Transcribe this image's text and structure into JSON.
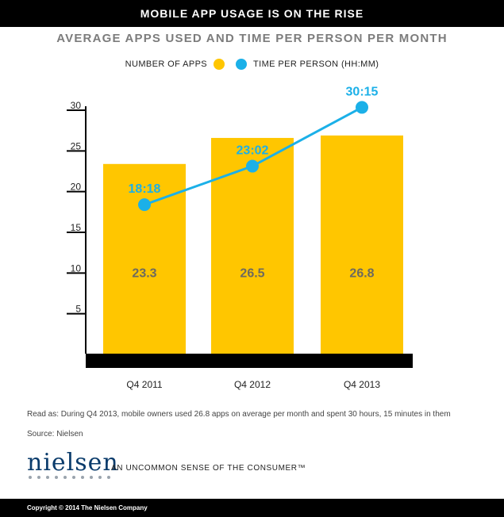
{
  "header": {
    "banner": "MOBILE APP USAGE IS ON THE RISE"
  },
  "chart_data": {
    "type": "bar",
    "title": "AVERAGE APPS USED AND TIME PER PERSON PER MONTH",
    "categories": [
      "Q4 2011",
      "Q4 2012",
      "Q4 2013"
    ],
    "ylim": [
      0,
      30
    ],
    "yticks": [
      5,
      10,
      15,
      20,
      25,
      30
    ],
    "grid": false,
    "legend_position": "top",
    "series": [
      {
        "name": "NUMBER OF APPS",
        "type": "bar",
        "color": "#ffc600",
        "values": [
          23.3,
          26.5,
          26.8
        ],
        "labels": [
          "23.3",
          "26.5",
          "26.8"
        ]
      },
      {
        "name": "TIME PER PERSON  (HH:MM)",
        "type": "line",
        "color": "#1bb0e8",
        "values": [
          18.3,
          23.03,
          30.25
        ],
        "labels": [
          "18:18",
          "23:02",
          "30:15"
        ]
      }
    ]
  },
  "notes": {
    "read_as": "Read as: During Q4 2013, mobile owners used 26.8 apps on average per month and spent 30 hours, 15 minutes in them",
    "source": "Source: Nielsen"
  },
  "brand": {
    "logo_text": "nielsen",
    "tagline": "AN UNCOMMON SENSE OF THE CONSUMER™"
  },
  "footer": {
    "copyright": "Copyright © 2014 The Nielsen Company"
  }
}
